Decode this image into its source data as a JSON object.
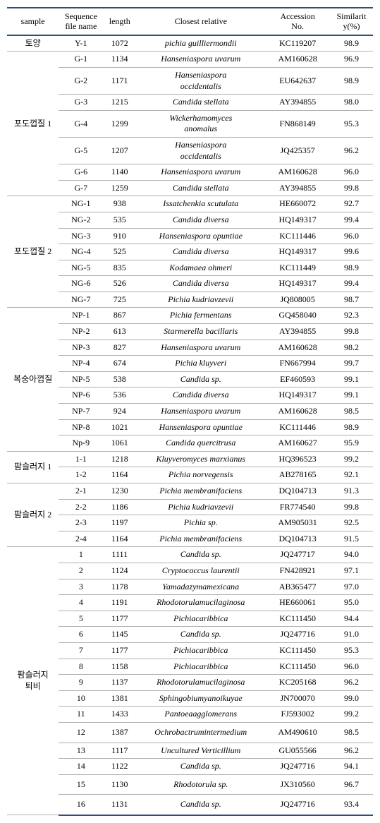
{
  "headers": {
    "sample": "sample",
    "seq": "Sequence\nfile name",
    "length": "length",
    "relative": "Closest   relative",
    "accession": "Accession\nNo.",
    "similarity": "Similarit\ny(%)"
  },
  "groups": [
    {
      "sample": "토양",
      "rows": [
        {
          "seq": "Y-1",
          "len": "1072",
          "rel": "pichia guilliermondii",
          "acc": "KC119207",
          "sim": "98.9"
        }
      ]
    },
    {
      "sample": "포도껍질 1",
      "rows": [
        {
          "seq": "G-1",
          "len": "1134",
          "rel": "Hanseniaspora   uvarum",
          "acc": "AM160628",
          "sim": "96.9"
        },
        {
          "seq": "G-2",
          "len": "1171",
          "rel": "Hanseniaspora\noccidentalis",
          "acc": "EU642637",
          "sim": "98.9",
          "multiline": true
        },
        {
          "seq": "G-3",
          "len": "1215",
          "rel": "Candida   stellata",
          "acc": "AY394855",
          "sim": "98.0"
        },
        {
          "seq": "G-4",
          "len": "1299",
          "rel": "Wickerhamomyces\nanomalus",
          "acc": "FN868149",
          "sim": "95.3",
          "multiline": true
        },
        {
          "seq": "G-5",
          "len": "1207",
          "rel": "Hanseniaspora\noccidentalis",
          "acc": "JQ425357",
          "sim": "96.2",
          "multiline": true
        },
        {
          "seq": "G-6",
          "len": "1140",
          "rel": "Hanseniaspora   uvarum",
          "acc": "AM160628",
          "sim": "96.0"
        },
        {
          "seq": "G-7",
          "len": "1259",
          "rel": "Candida   stellata",
          "acc": "AY394855",
          "sim": "99.8"
        }
      ]
    },
    {
      "sample": "포도껍질 2",
      "rows": [
        {
          "seq": "NG-1",
          "len": "938",
          "rel": "Issatchenkia scutulata",
          "acc": "HE660072",
          "sim": "92.7"
        },
        {
          "seq": "NG-2",
          "len": "535",
          "rel": "Candida diversa",
          "acc": "HQ149317",
          "sim": "99.4"
        },
        {
          "seq": "NG-3",
          "len": "910",
          "rel": "Hanseniaspora opuntiae",
          "acc": "KC111446",
          "sim": "96.0"
        },
        {
          "seq": "NG-4",
          "len": "525",
          "rel": "Candida diversa",
          "acc": "HQ149317",
          "sim": "99.6"
        },
        {
          "seq": "NG-5",
          "len": "835",
          "rel": "Kodamaea ohmeri",
          "acc": "KC111449",
          "sim": "98.9"
        },
        {
          "seq": "NG-6",
          "len": "526",
          "rel": "Candida diversa",
          "acc": "HQ149317",
          "sim": "99.4"
        },
        {
          "seq": "NG-7",
          "len": "725",
          "rel": "Pichia kudriavzevii",
          "acc": "JQ808005",
          "sim": "98.7"
        }
      ]
    },
    {
      "sample": "복숭아껍질",
      "rows": [
        {
          "seq": "NP-1",
          "len": "867",
          "rel": "Pichia fermentans",
          "acc": "GQ458040",
          "sim": "92.3"
        },
        {
          "seq": "NP-2",
          "len": "613",
          "rel": "Starmerella bacillaris",
          "acc": "AY394855",
          "sim": "99.8"
        },
        {
          "seq": "NP-3",
          "len": "827",
          "rel": "Hanseniaspora uvarum",
          "acc": "AM160628",
          "sim": "98.2"
        },
        {
          "seq": "NP-4",
          "len": "674",
          "rel": "Pichia kluyveri",
          "acc": "FN667994",
          "sim": "99.7"
        },
        {
          "seq": "NP-5",
          "len": "538",
          "rel": "Candida sp.",
          "acc": "EF460593",
          "sim": "99.1"
        },
        {
          "seq": "NP-6",
          "len": "536",
          "rel": "Candida diversa",
          "acc": "HQ149317",
          "sim": "99.1"
        },
        {
          "seq": "NP-7",
          "len": "924",
          "rel": "Hanseniaspora uvarum",
          "acc": "AM160628",
          "sim": "98.5"
        },
        {
          "seq": "NP-8",
          "len": "1021",
          "rel": "Hanseniaspora opuntiae",
          "acc": "KC111446",
          "sim": "98.9"
        },
        {
          "seq": "Np-9",
          "len": "1061",
          "rel": "Candida quercitrusa",
          "acc": "AM160627",
          "sim": "95.9"
        }
      ]
    },
    {
      "sample": "팜슬러지 1",
      "rows": [
        {
          "seq": "1-1",
          "len": "1218",
          "rel": "Kluyveromyces   marxianus",
          "acc": "HQ396523",
          "sim": "99.2"
        },
        {
          "seq": "1-2",
          "len": "1164",
          "rel": "Pichia   norvegensis",
          "acc": "AB278165",
          "sim": "92.1"
        }
      ]
    },
    {
      "sample": "팜슬러지 2",
      "rows": [
        {
          "seq": "2-1",
          "len": "1230",
          "rel": "Pichia   membranifaciens",
          "acc": "DQ104713",
          "sim": "91.3"
        },
        {
          "seq": "2-2",
          "len": "1186",
          "rel": "Pichia kudriavzevii",
          "acc": "FR774540",
          "sim": "99.8"
        },
        {
          "seq": "2-3",
          "len": "1197",
          "rel": "Pichia sp.",
          "acc": "AM905031",
          "sim": "92.5"
        },
        {
          "seq": "2-4",
          "len": "1164",
          "rel": "Pichia   membranifaciens",
          "acc": "DQ104713",
          "sim": "91.5"
        }
      ]
    },
    {
      "sample": "팜슬러지\n퇴비",
      "rows": [
        {
          "seq": "1",
          "len": "1111",
          "rel": "Candida sp.",
          "acc": "JQ247717",
          "sim": "94.0"
        },
        {
          "seq": "2",
          "len": "1124",
          "rel": "Cryptococcus laurentii",
          "acc": "FN428921",
          "sim": "97.1"
        },
        {
          "seq": "3",
          "len": "1178",
          "rel": "Yamadazymamexicana",
          "acc": "AB365477",
          "sim": "97.0"
        },
        {
          "seq": "4",
          "len": "1191",
          "rel": "Rhodotorulamucilaginosa",
          "acc": "HE660061",
          "sim": "95.0"
        },
        {
          "seq": "5",
          "len": "1177",
          "rel": "Pichiacaribbica",
          "acc": "KC111450",
          "sim": "94.4"
        },
        {
          "seq": "6",
          "len": "1145",
          "rel": "Candida sp.",
          "acc": "JQ247716",
          "sim": "91.0"
        },
        {
          "seq": "7",
          "len": "1177",
          "rel": "Pichiacaribbica",
          "acc": "KC111450",
          "sim": "95.3"
        },
        {
          "seq": "8",
          "len": "1158",
          "rel": "Pichiacaribbica",
          "acc": "KC111450",
          "sim": "96.0"
        },
        {
          "seq": "9",
          "len": "1137",
          "rel": "Rhodotorulamucilaginosa",
          "acc": "KC205168",
          "sim": "96.2"
        },
        {
          "seq": "10",
          "len": "1381",
          "rel": "Sphingobiumyanoikuyae",
          "acc": "JN700070",
          "sim": "99.0"
        },
        {
          "seq": "11",
          "len": "1433",
          "rel": "Pantoeaagglomerans",
          "acc": "FJ593002",
          "sim": "99.2"
        },
        {
          "seq": "12",
          "len": "1387",
          "rel": "Ochrobactrumintermedium",
          "acc": "AM490610",
          "sim": "98.5",
          "pad": true
        },
        {
          "seq": "13",
          "len": "1117",
          "rel": "Uncultured Verticillium",
          "acc": "GU055566",
          "sim": "96.2"
        },
        {
          "seq": "14",
          "len": "1122",
          "rel": "Candida sp.",
          "acc": "JQ247716",
          "sim": "94.1"
        },
        {
          "seq": "15",
          "len": "1130",
          "rel": "Rhodotorula sp.",
          "acc": "JX310560",
          "sim": "96.7",
          "pad": true
        },
        {
          "seq": "16",
          "len": "1131",
          "rel": "Candida sp.",
          "acc": "JQ247716",
          "sim": "93.4",
          "pad": true
        }
      ]
    }
  ]
}
